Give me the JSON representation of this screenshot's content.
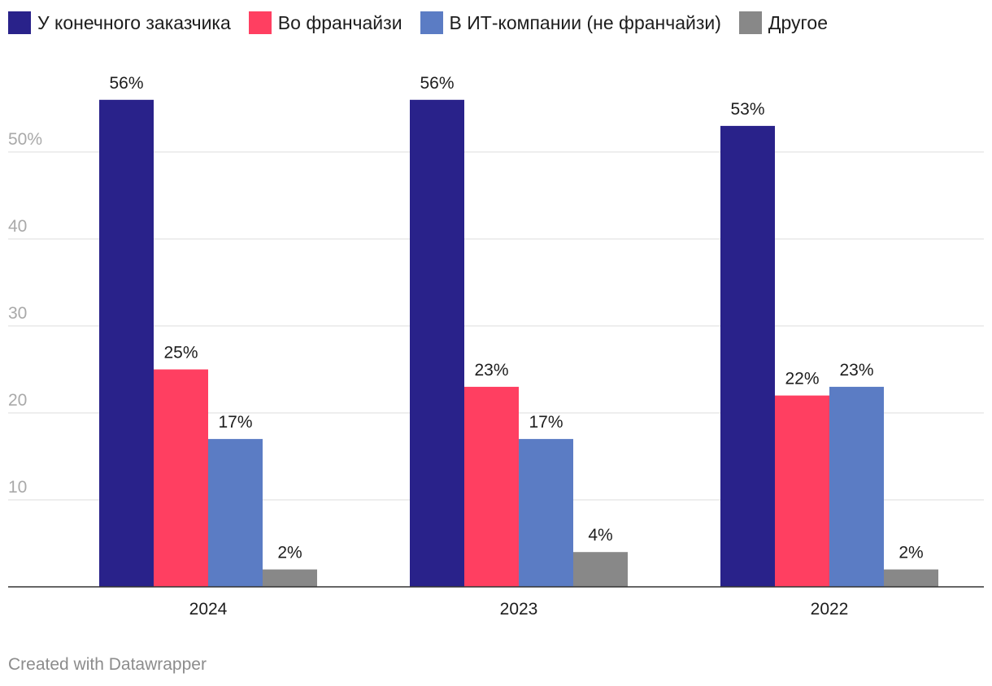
{
  "chart_data": {
    "type": "bar",
    "categories": [
      "2024",
      "2023",
      "2022"
    ],
    "series": [
      {
        "name": "У конечного заказчика",
        "color": "#29228a",
        "values": [
          56,
          56,
          53
        ],
        "labels": [
          "56%",
          "56%",
          "53%"
        ]
      },
      {
        "name": "Во франчайзи",
        "color": "#ff3f61",
        "values": [
          25,
          23,
          22
        ],
        "labels": [
          "25%",
          "23%",
          "22%"
        ]
      },
      {
        "name": "В ИТ-компании (не франчайзи)",
        "color": "#5b7cc4",
        "values": [
          17,
          17,
          23
        ],
        "labels": [
          "17%",
          "17%",
          "23%"
        ]
      },
      {
        "name": "Другое",
        "color": "#888888",
        "values": [
          2,
          4,
          2
        ],
        "labels": [
          "2%",
          "4%",
          "2%"
        ]
      }
    ],
    "yticks": [
      {
        "value": 10,
        "label": "10"
      },
      {
        "value": 20,
        "label": "20"
      },
      {
        "value": 30,
        "label": "30"
      },
      {
        "value": 40,
        "label": "40"
      },
      {
        "value": 50,
        "label": "50%"
      }
    ],
    "ylim": [
      0,
      60
    ],
    "grid": true,
    "legend_position": "top-left",
    "title": "",
    "xlabel": "",
    "ylabel": ""
  },
  "footer": "Created with Datawrapper"
}
